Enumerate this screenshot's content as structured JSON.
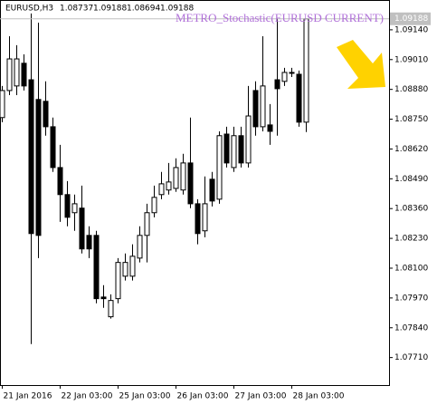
{
  "chart_data": {
    "type": "candlestick",
    "symbol": "EURUSD,H3",
    "indicator_label": "METRO_Stochastic(EURUSD CURRENT)",
    "categories": [
      "21 Jan 2016",
      null,
      null,
      null,
      null,
      null,
      null,
      null,
      "22 Jan 03:00",
      null,
      null,
      null,
      null,
      null,
      null,
      null,
      "25 Jan 03:00",
      null,
      null,
      null,
      null,
      null,
      null,
      null,
      "26 Jan 03:00",
      null,
      null,
      null,
      null,
      null,
      null,
      null,
      "27 Jan 03:00",
      null,
      null,
      null,
      null,
      null,
      null,
      null,
      "28 Jan 03:00",
      null,
      null
    ],
    "open": [
      1.08757,
      1.08875,
      1.08895,
      1.08994,
      1.08922,
      1.08836,
      1.08828,
      1.08717,
      1.08539,
      1.08421,
      1.08342,
      1.08362,
      1.08243,
      1.08243,
      1.07974,
      1.07888,
      1.07967,
      1.08065,
      1.08065,
      1.08144,
      1.08243,
      1.08342,
      1.08421,
      1.08441,
      1.08448,
      1.08441,
      1.08559,
      1.08381,
      1.08263,
      1.08488,
      1.08401,
      1.08685,
      1.08539,
      1.08678,
      1.08559,
      1.08875,
      1.08717,
      1.08725,
      1.08922,
      1.08915,
      1.08954,
      1.08946,
      1.08737
    ],
    "high": [
      1.08895,
      1.09112,
      1.09073,
      1.09033,
      1.09211,
      1.09171,
      1.08915,
      1.08757,
      1.08638,
      1.0848,
      1.08421,
      1.0846,
      1.08283,
      1.08263,
      1.08026,
      1.07986,
      1.08144,
      1.08164,
      1.08204,
      1.08283,
      1.08381,
      1.0846,
      1.0852,
      1.08559,
      1.08579,
      1.08599,
      1.08757,
      1.08401,
      1.085,
      1.0852,
      1.08697,
      1.08717,
      1.08717,
      1.08717,
      1.08895,
      1.08915,
      1.09112,
      1.08816,
      1.09191,
      1.08974,
      1.08974,
      1.08962,
      1.09188
    ],
    "low": [
      1.08737,
      1.08855,
      1.08855,
      1.08875,
      1.07769,
      1.08144,
      1.08678,
      1.0852,
      1.08302,
      1.08283,
      1.08263,
      1.08164,
      1.08144,
      1.07947,
      1.07927,
      1.0788,
      1.07947,
      1.08046,
      1.08046,
      1.08125,
      1.08125,
      1.08322,
      1.08401,
      1.08421,
      1.08433,
      1.08421,
      1.08362,
      1.08204,
      1.08235,
      1.08369,
      1.08381,
      1.08539,
      1.0852,
      1.08539,
      1.08539,
      1.08678,
      1.08697,
      1.08638,
      1.08678,
      1.08895,
      1.08934,
      1.08717,
      1.08694
    ],
    "close": [
      1.08875,
      1.09013,
      1.09013,
      1.08895,
      1.08251,
      1.08243,
      1.08717,
      1.08539,
      1.08421,
      1.08322,
      1.08381,
      1.08184,
      1.08184,
      1.07967,
      1.07967,
      1.07959,
      1.08125,
      1.08125,
      1.08152,
      1.08243,
      1.08342,
      1.08409,
      1.08468,
      1.08476,
      1.08539,
      1.08559,
      1.08381,
      1.08251,
      1.08381,
      1.08393,
      1.08678,
      1.08559,
      1.08678,
      1.08559,
      1.08764,
      1.08717,
      1.08895,
      1.08697,
      1.08883,
      1.08954,
      1.08954,
      1.08737,
      1.09188
    ],
    "up_color": "#ffffff",
    "down_color": "#000000",
    "ylim": [
      1.0759,
      1.0927
    ],
    "yticks": [
      {
        "value": 1.0914,
        "label": "1.09140"
      },
      {
        "value": 1.0901,
        "label": "1.09010"
      },
      {
        "value": 1.0888,
        "label": "1.08880"
      },
      {
        "value": 1.0875,
        "label": "1.08750"
      },
      {
        "value": 1.0862,
        "label": "1.08620"
      },
      {
        "value": 1.0849,
        "label": "1.08490"
      },
      {
        "value": 1.0836,
        "label": "1.08360"
      },
      {
        "value": 1.0823,
        "label": "1.08230"
      },
      {
        "value": 1.081,
        "label": "1.08100"
      },
      {
        "value": 1.0797,
        "label": "1.07970"
      },
      {
        "value": 1.0784,
        "label": "1.07840"
      },
      {
        "value": 1.0771,
        "label": "1.07710"
      }
    ]
  }
}
